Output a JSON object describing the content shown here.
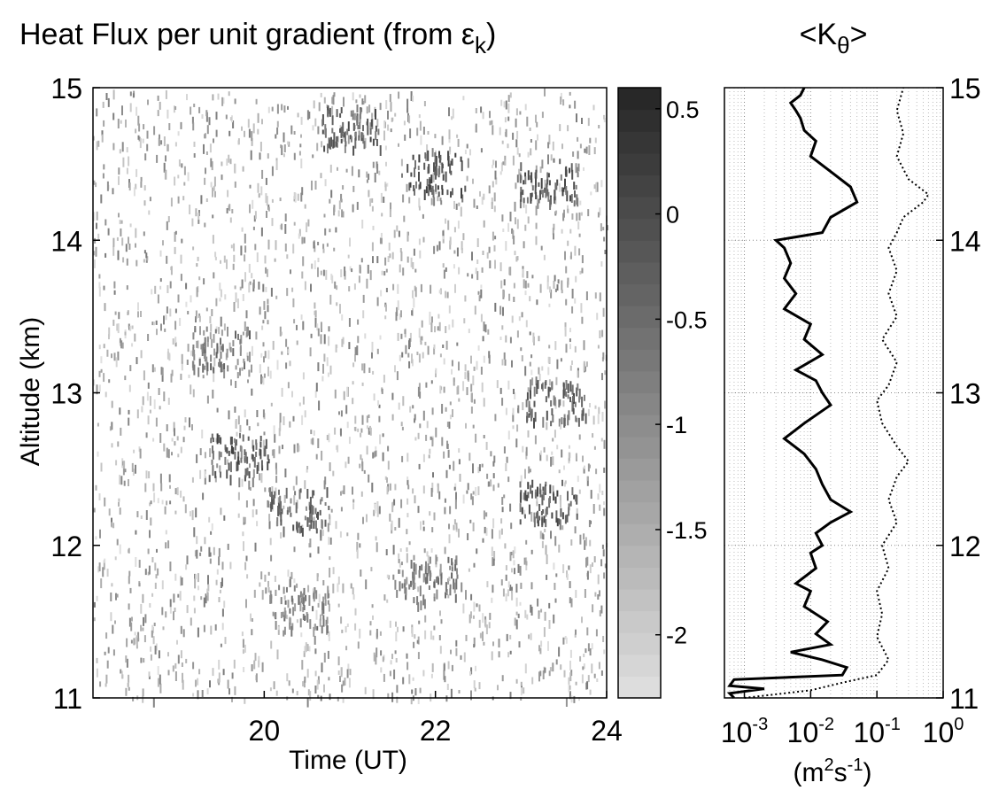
{
  "chart_data": [
    {
      "type": "heatmap",
      "title": "Heat Flux per unit gradient (from ε",
      "title_subscript": "k",
      "title_close": ")",
      "xlabel": "Time (UT)",
      "ylabel": "Altitude (km)",
      "xlim": [
        18,
        24
      ],
      "ylim": [
        11,
        15
      ],
      "x_ticks": [
        20,
        22,
        24
      ],
      "x_tick_labels": [
        "20",
        "22",
        "24"
      ],
      "y_ticks": [
        11,
        12,
        13,
        14,
        15
      ],
      "y_tick_labels": [
        "11",
        "12",
        "13",
        "14",
        "15"
      ],
      "colormap": "gray",
      "background_color": "#ffffff",
      "color_scale": "log10",
      "colorbar": {
        "range": [
          -2.3,
          0.6
        ],
        "ticks": [
          0.5,
          0,
          -0.5,
          -1,
          -1.5,
          -2
        ],
        "tick_labels": [
          "0.5",
          "0",
          "-0.5",
          "-1",
          "-1.5",
          "-2"
        ],
        "levels": 28,
        "light_color": "#e0e0e0",
        "dark_color": "#252525"
      },
      "features": [
        {
          "time": 21.0,
          "altitude": 14.75,
          "value": 0.2
        },
        {
          "time": 22.0,
          "altitude": 14.45,
          "value": 0.3
        },
        {
          "time": 23.3,
          "altitude": 14.4,
          "value": 0.2
        },
        {
          "time": 19.5,
          "altitude": 13.3,
          "value": -0.3
        },
        {
          "time": 23.4,
          "altitude": 12.95,
          "value": 0.1
        },
        {
          "time": 19.7,
          "altitude": 12.6,
          "value": 0.2
        },
        {
          "time": 20.4,
          "altitude": 12.25,
          "value": 0.0
        },
        {
          "time": 23.3,
          "altitude": 12.3,
          "value": 0.2
        },
        {
          "time": 20.4,
          "altitude": 11.6,
          "value": -0.4
        },
        {
          "time": 21.9,
          "altitude": 11.8,
          "value": -0.3
        }
      ]
    },
    {
      "type": "line",
      "title": "<K",
      "title_subscript": "θ",
      "title_close": ">",
      "xlabel": "(m²s⁻¹)",
      "xlabel_parts": {
        "open": "(m",
        "sup1": "2",
        "mid": "s",
        "sup2": "-1",
        "close": ")"
      },
      "x_scale": "log",
      "xlim": [
        0.0005,
        1
      ],
      "x_ticks": [
        0.001,
        0.01,
        0.1,
        1
      ],
      "x_tick_labels": [
        {
          "base": "10",
          "exp": "-3"
        },
        {
          "base": "10",
          "exp": "-2"
        },
        {
          "base": "10",
          "exp": "-1"
        },
        {
          "base": "10",
          "exp": "0"
        }
      ],
      "ylim": [
        11,
        15
      ],
      "y_ticks": [
        11,
        12,
        13,
        14,
        15
      ],
      "y_tick_labels": [
        "11",
        "12",
        "13",
        "14",
        "15"
      ],
      "y_axis_side": "right",
      "grid": true,
      "series": [
        {
          "style": "solid",
          "points": [
            [
              0.0007,
              11.0
            ],
            [
              0.0006,
              11.03
            ],
            [
              0.002,
              11.06
            ],
            [
              0.0006,
              11.08
            ],
            [
              0.0007,
              11.12
            ],
            [
              0.03,
              11.15
            ],
            [
              0.035,
              11.2
            ],
            [
              0.015,
              11.25
            ],
            [
              0.005,
              11.3
            ],
            [
              0.02,
              11.35
            ],
            [
              0.012,
              11.42
            ],
            [
              0.018,
              11.5
            ],
            [
              0.008,
              11.6
            ],
            [
              0.01,
              11.7
            ],
            [
              0.006,
              11.75
            ],
            [
              0.012,
              11.85
            ],
            [
              0.01,
              11.95
            ],
            [
              0.015,
              12.0
            ],
            [
              0.012,
              12.08
            ],
            [
              0.02,
              12.15
            ],
            [
              0.04,
              12.22
            ],
            [
              0.02,
              12.3
            ],
            [
              0.015,
              12.4
            ],
            [
              0.012,
              12.5
            ],
            [
              0.008,
              12.6
            ],
            [
              0.004,
              12.7
            ],
            [
              0.008,
              12.8
            ],
            [
              0.02,
              12.92
            ],
            [
              0.015,
              13.0
            ],
            [
              0.012,
              13.08
            ],
            [
              0.006,
              13.15
            ],
            [
              0.015,
              13.25
            ],
            [
              0.008,
              13.35
            ],
            [
              0.01,
              13.45
            ],
            [
              0.004,
              13.55
            ],
            [
              0.006,
              13.65
            ],
            [
              0.004,
              13.75
            ],
            [
              0.005,
              13.85
            ],
            [
              0.004,
              13.95
            ],
            [
              0.003,
              14.0
            ],
            [
              0.015,
              14.05
            ],
            [
              0.02,
              14.15
            ],
            [
              0.05,
              14.25
            ],
            [
              0.04,
              14.35
            ],
            [
              0.02,
              14.45
            ],
            [
              0.01,
              14.55
            ],
            [
              0.012,
              14.65
            ],
            [
              0.008,
              14.72
            ],
            [
              0.007,
              14.8
            ],
            [
              0.006,
              14.85
            ],
            [
              0.005,
              14.9
            ],
            [
              0.007,
              14.95
            ],
            [
              0.008,
              15.0
            ]
          ]
        },
        {
          "style": "dotted",
          "points": [
            [
              0.001,
              11.0
            ],
            [
              0.01,
              11.05
            ],
            [
              0.03,
              11.1
            ],
            [
              0.1,
              11.15
            ],
            [
              0.15,
              11.25
            ],
            [
              0.1,
              11.4
            ],
            [
              0.12,
              11.55
            ],
            [
              0.1,
              11.7
            ],
            [
              0.15,
              11.85
            ],
            [
              0.12,
              12.0
            ],
            [
              0.2,
              12.15
            ],
            [
              0.15,
              12.3
            ],
            [
              0.2,
              12.45
            ],
            [
              0.3,
              12.55
            ],
            [
              0.2,
              12.65
            ],
            [
              0.12,
              12.8
            ],
            [
              0.1,
              12.95
            ],
            [
              0.15,
              13.05
            ],
            [
              0.2,
              13.2
            ],
            [
              0.12,
              13.35
            ],
            [
              0.2,
              13.5
            ],
            [
              0.15,
              13.65
            ],
            [
              0.2,
              13.8
            ],
            [
              0.15,
              13.95
            ],
            [
              0.2,
              14.05
            ],
            [
              0.25,
              14.15
            ],
            [
              0.5,
              14.25
            ],
            [
              0.6,
              14.3
            ],
            [
              0.3,
              14.4
            ],
            [
              0.2,
              14.55
            ],
            [
              0.25,
              14.7
            ],
            [
              0.2,
              14.85
            ],
            [
              0.25,
              15.0
            ]
          ]
        }
      ]
    }
  ]
}
